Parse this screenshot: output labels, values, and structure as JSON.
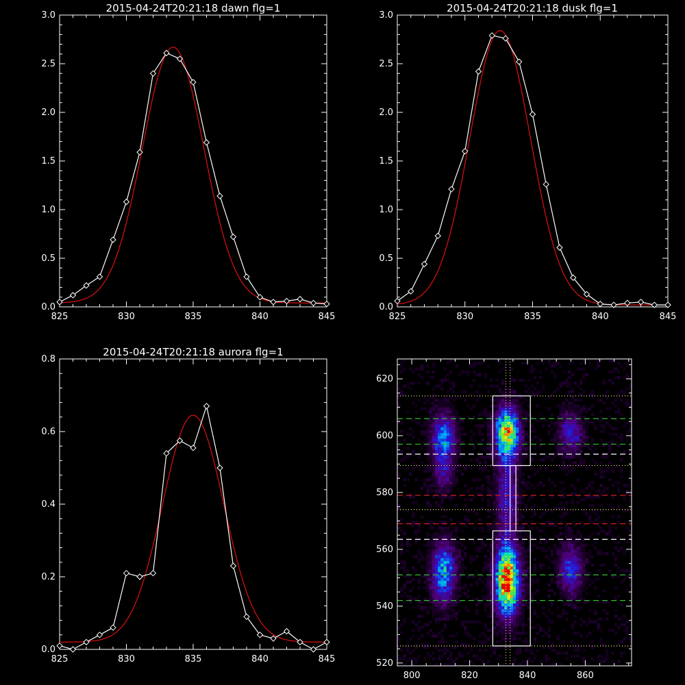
{
  "colors": {
    "background": "#000000",
    "axis": "#ffffff",
    "data": "#ffffff",
    "fit": "#d01010",
    "green_dash": "#30c030",
    "red_dash": "#d02020",
    "white_dash": "#ffffff",
    "dotted": "#ffff80"
  },
  "chart_data": [
    {
      "type": "line",
      "title": "2015-04-24T20:21:18 dawn flg=1",
      "xlim": [
        825,
        845
      ],
      "ylim": [
        0,
        3.0
      ],
      "xticks": [
        825,
        830,
        835,
        840,
        845
      ],
      "yticks": [
        0.0,
        0.5,
        1.0,
        1.5,
        2.0,
        2.5,
        3.0
      ],
      "ytick_labels": [
        "0.0",
        "0.5",
        "1.0",
        "1.5",
        "2.0",
        "2.5",
        "3.0"
      ],
      "series": [
        {
          "marker": "diamond",
          "x": [
            825,
            826,
            827,
            828,
            829,
            830,
            831,
            832,
            833,
            834,
            835,
            836,
            837,
            838,
            839,
            840,
            841,
            842,
            843,
            844,
            845
          ],
          "y": [
            0.05,
            0.12,
            0.22,
            0.31,
            0.69,
            1.08,
            1.59,
            2.4,
            2.61,
            2.55,
            2.31,
            1.69,
            1.14,
            0.72,
            0.31,
            0.1,
            0.05,
            0.06,
            0.08,
            0.04,
            0.03
          ]
        },
        {
          "style": "fit",
          "gaussian": {
            "amplitude": 2.63,
            "center": 833.5,
            "sigma": 2.3,
            "offset": 0.04
          }
        }
      ]
    },
    {
      "type": "line",
      "title": "2015-04-24T20:21:18 dusk flg=1",
      "xlim": [
        825,
        845
      ],
      "ylim": [
        0,
        3.0
      ],
      "xticks": [
        825,
        830,
        835,
        840,
        845
      ],
      "yticks": [
        0.0,
        0.5,
        1.0,
        1.5,
        2.0,
        2.5,
        3.0
      ],
      "ytick_labels": [
        "0.0",
        "0.5",
        "1.0",
        "1.5",
        "2.0",
        "2.5",
        "3.0"
      ],
      "series": [
        {
          "marker": "diamond",
          "x": [
            825,
            826,
            827,
            828,
            829,
            830,
            831,
            832,
            833,
            834,
            835,
            836,
            837,
            838,
            839,
            840,
            841,
            842,
            843,
            844,
            845
          ],
          "y": [
            0.06,
            0.16,
            0.44,
            0.73,
            1.21,
            1.6,
            2.42,
            2.79,
            2.76,
            2.52,
            1.98,
            1.26,
            0.61,
            0.3,
            0.13,
            0.03,
            0.02,
            0.04,
            0.05,
            0.02,
            0.02
          ]
        },
        {
          "style": "fit",
          "gaussian": {
            "amplitude": 2.82,
            "center": 832.6,
            "sigma": 2.25,
            "offset": 0.02
          }
        }
      ]
    },
    {
      "type": "line",
      "title": "2015-04-24T20:21:18 aurora flg=1",
      "xlim": [
        825,
        845
      ],
      "ylim": [
        0,
        0.8
      ],
      "xticks": [
        825,
        830,
        835,
        840,
        845
      ],
      "yticks": [
        0.0,
        0.2,
        0.4,
        0.6,
        0.8
      ],
      "ytick_labels": [
        "0.0",
        "0.2",
        "0.4",
        "0.6",
        "0.8"
      ],
      "series": [
        {
          "marker": "diamond",
          "x": [
            825,
            826,
            827,
            828,
            829,
            830,
            831,
            832,
            833,
            834,
            835,
            836,
            837,
            838,
            839,
            840,
            841,
            842,
            843,
            844,
            845
          ],
          "y": [
            0.01,
            0.0,
            0.02,
            0.04,
            0.06,
            0.21,
            0.2,
            0.21,
            0.54,
            0.575,
            0.555,
            0.67,
            0.5,
            0.23,
            0.09,
            0.04,
            0.03,
            0.05,
            0.02,
            0.0,
            0.02
          ]
        },
        {
          "style": "fit",
          "gaussian": {
            "amplitude": 0.625,
            "center": 835.0,
            "sigma": 2.3,
            "offset": 0.02
          }
        }
      ]
    },
    {
      "type": "heatmap",
      "xlim": [
        795,
        876
      ],
      "ylim": [
        519,
        627
      ],
      "xticks": [
        800,
        820,
        840,
        860
      ],
      "yticks": [
        520,
        540,
        560,
        580,
        600,
        620
      ],
      "blobs": [
        {
          "x": 833,
          "y": 549,
          "sx": 2.8,
          "sy": 8,
          "amp": 1.0
        },
        {
          "x": 833,
          "y": 601,
          "sx": 2.8,
          "sy": 6,
          "amp": 0.8
        },
        {
          "x": 811,
          "y": 552,
          "sx": 2.8,
          "sy": 7,
          "amp": 0.5
        },
        {
          "x": 811,
          "y": 599,
          "sx": 2.8,
          "sy": 6,
          "amp": 0.45
        },
        {
          "x": 855,
          "y": 553,
          "sx": 2.8,
          "sy": 6,
          "amp": 0.35
        },
        {
          "x": 855,
          "y": 601,
          "sx": 2.8,
          "sy": 5,
          "amp": 0.3
        },
        {
          "x": 833,
          "y": 578,
          "sx": 2.5,
          "sy": 10,
          "amp": 0.3
        },
        {
          "x": 811,
          "y": 586,
          "sx": 2.5,
          "sy": 4,
          "amp": 0.2
        }
      ],
      "hlines": [
        {
          "y": 614,
          "style": "dotted"
        },
        {
          "y": 606,
          "style": "green"
        },
        {
          "y": 597,
          "style": "green"
        },
        {
          "y": 593.5,
          "style": "white"
        },
        {
          "y": 589.5,
          "style": "dotted"
        },
        {
          "y": 579,
          "style": "red"
        },
        {
          "y": 574,
          "style": "dotted"
        },
        {
          "y": 569,
          "style": "red"
        },
        {
          "y": 563.5,
          "style": "white"
        },
        {
          "y": 551,
          "style": "green"
        },
        {
          "y": 542,
          "style": "green"
        },
        {
          "y": 526,
          "style": "dotted"
        }
      ],
      "vlines": [
        832.5,
        834.0
      ],
      "boxes": [
        {
          "x0": 828,
          "x1": 841,
          "y0": 589.5,
          "y1": 614
        },
        {
          "x0": 834,
          "x1": 836,
          "y0": 566.5,
          "y1": 589.5
        },
        {
          "x0": 828,
          "x1": 841,
          "y0": 526,
          "y1": 566.5
        }
      ]
    }
  ]
}
